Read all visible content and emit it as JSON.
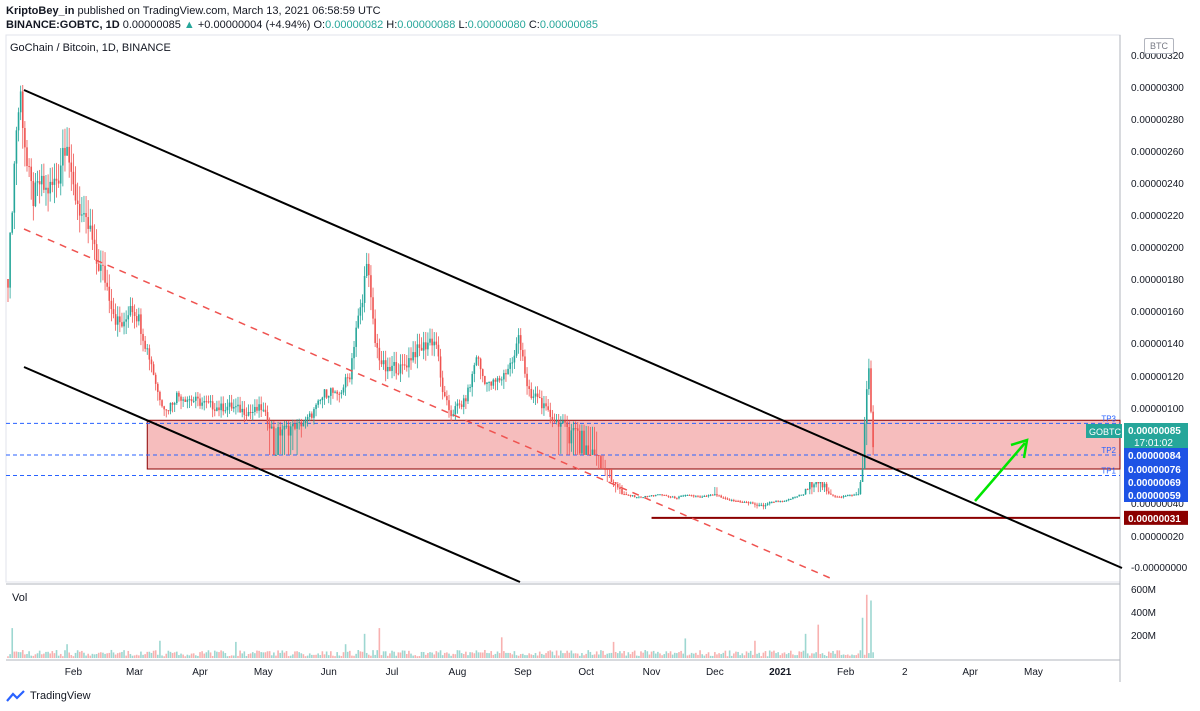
{
  "header": {
    "author": "KriptoBey_in",
    "published": "published on TradingView.com, March 13, 2021 06:58:59 UTC",
    "symbol": "BINANCE:GOBTC, 1D",
    "last": "0.00000085",
    "change_arrow": "▲",
    "change": "+0.00000004 (+4.94%)",
    "o_label": "O:",
    "o": "0.00000082",
    "h_label": "H:",
    "h": "0.00000088",
    "l_label": "L:",
    "l": "0.00000080",
    "c_label": "C:",
    "c": "0.00000085"
  },
  "chart_title": "GoChain / Bitcoin, 1D, BINANCE",
  "currency": "BTC",
  "volume_label": "Vol",
  "footer_brand": "TradingView",
  "colors": {
    "up": "#26a69a",
    "down": "#ef5350",
    "zone_fill": "#f5b1b1",
    "zone_border": "#8b0000",
    "support_line": "#8b0000",
    "dashed_tp": "#2962ff",
    "channel": "#000000",
    "midline": "#ef5350",
    "arrow": "#00e600",
    "price_tag_current": "#26a69a",
    "price_tag_levels": "#1e53e5",
    "price_tag_support": "#8b0000"
  },
  "chart_data": {
    "type": "candlestick",
    "title": "GoChain / Bitcoin, 1D, BINANCE",
    "y_unit": "BTC",
    "ylim": [
      -0.0,
      3.2e-07
    ],
    "y_ticks": [
      "0.00000320",
      "0.00000300",
      "0.00000280",
      "0.00000260",
      "0.00000240",
      "0.00000220",
      "0.00000200",
      "0.00000180",
      "0.00000160",
      "0.00000140",
      "0.00000120",
      "0.00000100",
      "0.00000040",
      "0.00000020",
      "-0.00000000"
    ],
    "y_tick_values": [
      320,
      300,
      280,
      260,
      240,
      220,
      200,
      180,
      160,
      140,
      120,
      100,
      40,
      20,
      0
    ],
    "x_labels": [
      "Feb",
      "Mar",
      "Apr",
      "May",
      "Jun",
      "Jul",
      "Aug",
      "Sep",
      "Oct",
      "Nov",
      "Dec",
      "2021",
      "Feb",
      "2",
      "Apr",
      "May"
    ],
    "x_label_days": [
      31,
      60,
      91,
      121,
      152,
      182,
      213,
      244,
      274,
      305,
      335,
      366,
      397,
      425,
      456,
      486
    ],
    "close_path": [
      [
        0,
        180
      ],
      [
        4,
        275
      ],
      [
        6,
        295
      ],
      [
        9,
        250
      ],
      [
        12,
        230
      ],
      [
        15,
        240
      ],
      [
        18,
        235
      ],
      [
        21,
        238
      ],
      [
        24,
        245
      ],
      [
        26,
        262
      ],
      [
        28,
        268
      ],
      [
        30,
        240
      ],
      [
        33,
        228
      ],
      [
        36,
        215
      ],
      [
        39,
        210
      ],
      [
        42,
        190
      ],
      [
        45,
        185
      ],
      [
        48,
        170
      ],
      [
        51,
        155
      ],
      [
        55,
        150
      ],
      [
        58,
        165
      ],
      [
        62,
        155
      ],
      [
        65,
        140
      ],
      [
        68,
        128
      ],
      [
        71,
        110
      ],
      [
        75,
        98
      ],
      [
        80,
        108
      ],
      [
        85,
        106
      ],
      [
        90,
        104
      ],
      [
        95,
        102
      ],
      [
        100,
        100
      ],
      [
        105,
        101
      ],
      [
        110,
        99
      ],
      [
        115,
        97
      ],
      [
        120,
        100
      ],
      [
        123,
        92
      ],
      [
        126,
        84
      ],
      [
        129,
        86
      ],
      [
        132,
        87
      ],
      [
        135,
        88
      ],
      [
        138,
        89
      ],
      [
        141,
        91
      ],
      [
        144,
        96
      ],
      [
        147,
        102
      ],
      [
        150,
        109
      ],
      [
        153,
        111
      ],
      [
        156,
        106
      ],
      [
        159,
        114
      ],
      [
        162,
        121
      ],
      [
        165,
        150
      ],
      [
        168,
        165
      ],
      [
        170,
        195
      ],
      [
        172,
        165
      ],
      [
        174,
        140
      ],
      [
        177,
        128
      ],
      [
        180,
        122
      ],
      [
        183,
        126
      ],
      [
        186,
        124
      ],
      [
        189,
        128
      ],
      [
        192,
        134
      ],
      [
        195,
        136
      ],
      [
        198,
        139
      ],
      [
        200,
        142
      ],
      [
        203,
        140
      ],
      [
        205,
        118
      ],
      [
        207,
        105
      ],
      [
        210,
        96
      ],
      [
        213,
        101
      ],
      [
        216,
        103
      ],
      [
        219,
        114
      ],
      [
        222,
        133
      ],
      [
        225,
        120
      ],
      [
        228,
        114
      ],
      [
        231,
        116
      ],
      [
        234,
        119
      ],
      [
        237,
        125
      ],
      [
        240,
        131
      ],
      [
        242,
        145
      ],
      [
        244,
        133
      ],
      [
        246,
        112
      ],
      [
        248,
        106
      ],
      [
        251,
        108
      ],
      [
        254,
        100
      ],
      [
        257,
        95
      ],
      [
        260,
        91
      ],
      [
        263,
        89
      ],
      [
        266,
        87
      ],
      [
        269,
        86
      ],
      [
        272,
        85
      ],
      [
        275,
        84
      ],
      [
        278,
        82
      ],
      [
        281,
        78
      ],
      [
        284,
        72
      ],
      [
        287,
        65
      ],
      [
        290,
        60
      ],
      [
        293,
        56
      ],
      [
        296,
        53
      ],
      [
        299,
        51
      ],
      [
        302,
        52
      ],
      [
        305,
        54
      ],
      [
        308,
        57
      ],
      [
        311,
        55
      ],
      [
        314,
        51
      ],
      [
        317,
        50
      ],
      [
        320,
        53
      ],
      [
        323,
        55
      ],
      [
        326,
        52
      ],
      [
        329,
        51
      ],
      [
        332,
        54
      ],
      [
        335,
        57
      ],
      [
        338,
        50
      ],
      [
        341,
        46
      ],
      [
        344,
        44
      ],
      [
        347,
        43
      ],
      [
        350,
        41
      ],
      [
        353,
        40
      ],
      [
        356,
        38
      ],
      [
        359,
        39
      ],
      [
        362,
        42
      ],
      [
        365,
        44
      ],
      [
        368,
        43
      ],
      [
        371,
        48
      ],
      [
        374,
        53
      ],
      [
        377,
        58
      ],
      [
        380,
        62
      ],
      [
        383,
        65
      ],
      [
        386,
        62
      ],
      [
        389,
        58
      ],
      [
        392,
        53
      ],
      [
        395,
        52
      ],
      [
        398,
        54
      ],
      [
        401,
        56
      ],
      [
        403,
        58
      ],
      [
        405,
        75
      ],
      [
        407,
        110
      ],
      [
        408,
        122
      ],
      [
        409,
        98
      ],
      [
        410,
        85
      ]
    ],
    "volume_spikes": [
      [
        2,
        260
      ],
      [
        28,
        120
      ],
      [
        72,
        150
      ],
      [
        108,
        140
      ],
      [
        160,
        120
      ],
      [
        169,
        210
      ],
      [
        176,
        260
      ],
      [
        234,
        180
      ],
      [
        287,
        140
      ],
      [
        321,
        170
      ],
      [
        354,
        150
      ],
      [
        378,
        210
      ],
      [
        384,
        290
      ],
      [
        405,
        350
      ],
      [
        407,
        550
      ],
      [
        409,
        500
      ]
    ],
    "volume_ticks": [
      "600M",
      "400M",
      "200M"
    ],
    "volume_tick_values": [
      600,
      400,
      200
    ],
    "zone": {
      "from_day": 66,
      "top": 92,
      "bottom": 71
    },
    "support_level": {
      "value": 31,
      "label": "0.00000031",
      "from_day": 305
    },
    "tp_levels": [
      {
        "name": "TP3",
        "value": 90
      },
      {
        "name": "TP2",
        "value": 84
      },
      {
        "name": "TP1",
        "value": 70
      }
    ],
    "price_tags": [
      {
        "name": "GOBTC",
        "value": "0.00000085",
        "time": "17:01:02",
        "level": 85
      },
      {
        "value": "0.00000084",
        "level": 79
      },
      {
        "value": "0.00000076",
        "level": 71
      },
      {
        "value": "0.00000069",
        "level": 63
      },
      {
        "value": "0.00000059",
        "level": 55
      }
    ],
    "grid": false,
    "legend": "none"
  }
}
